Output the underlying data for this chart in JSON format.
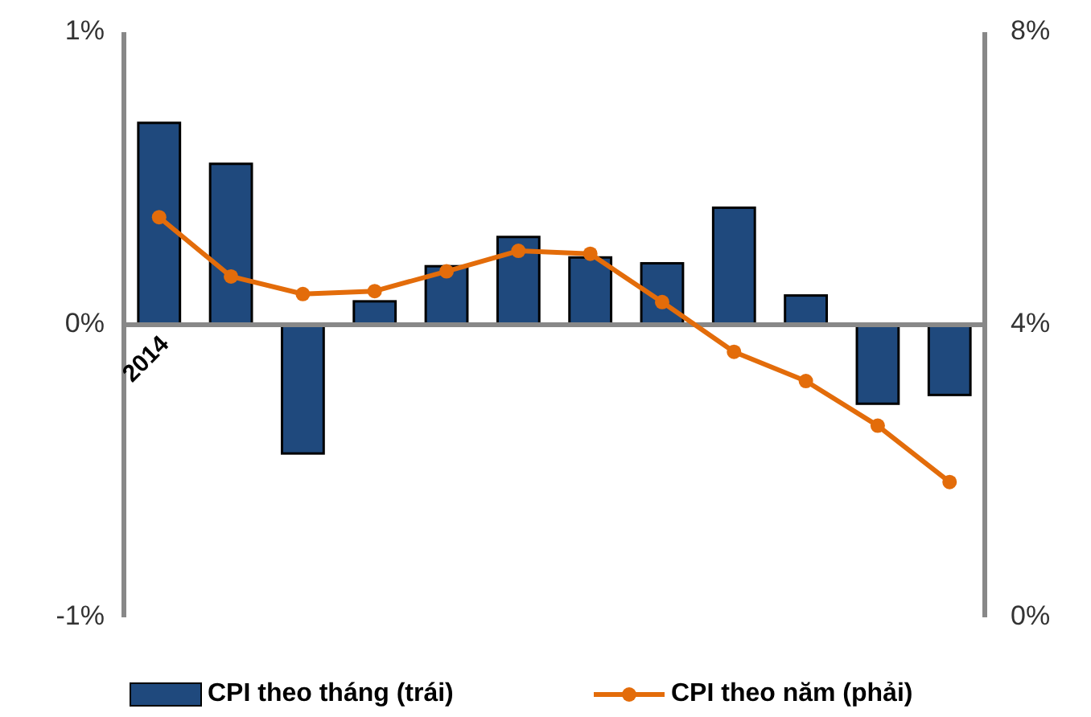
{
  "chart_data": {
    "type": "bar",
    "categories": [
      "2014",
      null,
      null,
      null,
      null,
      null,
      null,
      null,
      null,
      null,
      null,
      null
    ],
    "series": [
      {
        "name": "CPI theo tháng (trái)",
        "color": "#1f497d",
        "values": [
          0.69,
          0.55,
          -0.44,
          0.08,
          0.2,
          0.3,
          0.23,
          0.21,
          0.4,
          0.1,
          -0.27,
          -0.24
        ]
      },
      {
        "name": "CPI theo năm (phải)",
        "type": "line",
        "axis": "y2",
        "color": "#e36c0a",
        "values": [
          5.47,
          4.66,
          4.42,
          4.46,
          4.73,
          5.01,
          4.97,
          4.31,
          3.63,
          3.23,
          2.62,
          1.85
        ]
      }
    ],
    "ylim": [
      -1,
      1
    ],
    "yticks": [
      {
        "value": -1,
        "label": "-1%"
      },
      {
        "value": 0,
        "label": "0%"
      },
      {
        "value": 1,
        "label": "1%"
      }
    ],
    "y2lim": [
      0,
      8
    ],
    "y2ticks": [
      {
        "value": 0,
        "label": "0%"
      },
      {
        "value": 4,
        "label": "4%"
      },
      {
        "value": 8,
        "label": "8%"
      }
    ],
    "legend": "bottom",
    "marker": "circle",
    "line_style": "solid"
  }
}
